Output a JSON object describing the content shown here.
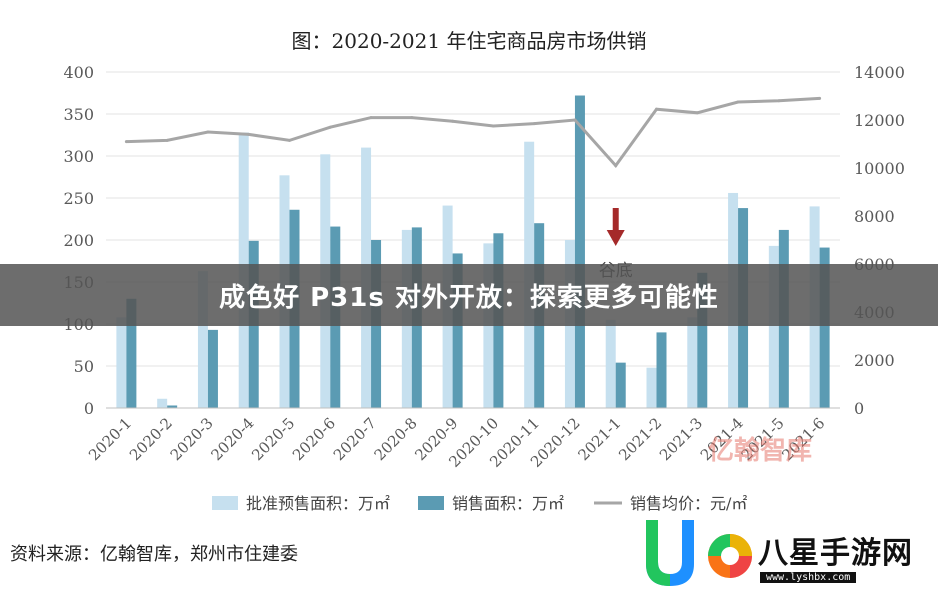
{
  "banner": {
    "text": "成色好 P31s 对外开放：探索更多可能性"
  },
  "source": {
    "text": "资料来源：亿翰智库，郑州市住建委"
  },
  "watermarks": {
    "brand_text": "亿翰智库",
    "site_text": "八星手游网",
    "site_url": "www.lyshbx.com"
  },
  "colors": {
    "series1": "#c6e0ef",
    "series2": "#5b9bb3",
    "line": "#a6a6a6",
    "arrow": "#a52a2a",
    "banner": "#555555"
  },
  "chart_data": {
    "type": "bar",
    "title": "图：2020-2021 年住宅商品房市场供销",
    "categories": [
      "2020-1",
      "2020-2",
      "2020-3",
      "2020-4",
      "2020-5",
      "2020-6",
      "2020-7",
      "2020-8",
      "2020-9",
      "2020-10",
      "2020-11",
      "2020-12",
      "2021-1",
      "2021-2",
      "2021-3",
      "2021-4",
      "2021-5",
      "2021-6"
    ],
    "series": [
      {
        "name": "批准预售面积：万㎡",
        "type": "bar",
        "axis": "left",
        "values": [
          108,
          11,
          163,
          328,
          277,
          302,
          310,
          212,
          241,
          196,
          317,
          200,
          105,
          48,
          108,
          256,
          193,
          240
        ]
      },
      {
        "name": "销售面积：万㎡",
        "type": "bar",
        "axis": "left",
        "values": [
          130,
          3,
          93,
          199,
          236,
          216,
          200,
          215,
          184,
          208,
          220,
          372,
          54,
          90,
          161,
          238,
          212,
          191
        ]
      },
      {
        "name": "销售均价：元/㎡",
        "type": "line",
        "axis": "right",
        "values": [
          11100,
          11150,
          11500,
          11400,
          11150,
          11700,
          12100,
          12100,
          11950,
          11750,
          11850,
          12000,
          10100,
          12450,
          12300,
          12750,
          12800,
          12900
        ]
      }
    ],
    "ylim_left": [
      0,
      400
    ],
    "yticks_left": [
      "0",
      "50",
      "100",
      "150",
      "200",
      "250",
      "300",
      "350",
      "400"
    ],
    "ylim_right": [
      0,
      14000
    ],
    "yticks_right": [
      "0",
      "2000",
      "4000",
      "6000",
      "8000",
      "10000",
      "12000",
      "14000"
    ],
    "grid": true,
    "legend_position": "bottom",
    "annotation": {
      "text": "谷底",
      "category": "2021-1"
    }
  }
}
